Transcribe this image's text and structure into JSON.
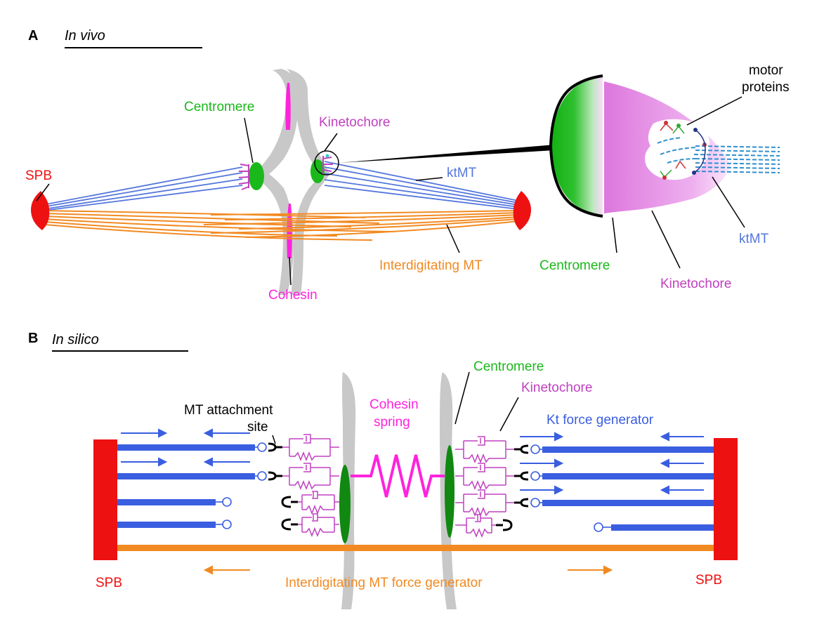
{
  "colors": {
    "spb": "#ee1111",
    "centromere": "#1bb81b",
    "centromere_dark": "#118811",
    "kinetochore": "#c040c0",
    "cohesin": "#ff22dd",
    "ktmt": "#5577dd",
    "kt_force": "#3a5ee0",
    "interdigitating": "#f28a22",
    "chromatid": "#c8c8c8",
    "text": "#000000"
  },
  "panel_a": {
    "letter": "A",
    "subtitle": "In vivo",
    "labels": {
      "spb": "SPB",
      "centromere": "Centromere",
      "kinetochore": "Kinetochore",
      "ktmt": "ktMT",
      "interdigitating": "Interdigitating MT",
      "cohesin": "Cohesin"
    },
    "inset": {
      "motor_line1": "motor",
      "motor_line2": "proteins",
      "ktmt": "ktMT",
      "centromere": "Centromere",
      "kinetochore": "Kinetochore"
    }
  },
  "panel_b": {
    "letter": "B",
    "subtitle": "In silico",
    "labels": {
      "mt_attach_line1": "MT attachment",
      "mt_attach_line2": "site",
      "cohesin_line1": "Cohesin",
      "cohesin_line2": "spring",
      "centromere": "Centromere",
      "kinetochore": "Kinetochore",
      "kt_force": "Kt force generator",
      "spb_left": "SPB",
      "spb_right": "SPB",
      "interdigitating_force": "Interdigitating MT force generator"
    }
  }
}
